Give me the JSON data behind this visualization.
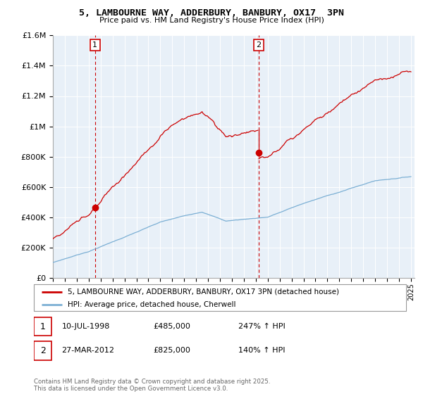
{
  "title": "5, LAMBOURNE WAY, ADDERBURY, BANBURY, OX17  3PN",
  "subtitle": "Price paid vs. HM Land Registry's House Price Index (HPI)",
  "legend_line1": "5, LAMBOURNE WAY, ADDERBURY, BANBURY, OX17 3PN (detached house)",
  "legend_line2": "HPI: Average price, detached house, Cherwell",
  "annotation1_date": "10-JUL-1998",
  "annotation1_price": "£485,000",
  "annotation1_hpi": "247% ↑ HPI",
  "annotation2_date": "27-MAR-2012",
  "annotation2_price": "£825,000",
  "annotation2_hpi": "140% ↑ HPI",
  "footer": "Contains HM Land Registry data © Crown copyright and database right 2025.\nThis data is licensed under the Open Government Licence v3.0.",
  "price_color": "#cc0000",
  "hpi_color": "#7bafd4",
  "vline_color": "#cc0000",
  "bg_color": "#e8f0f8",
  "ylim": [
    0,
    1600000
  ],
  "yticks": [
    0,
    200000,
    400000,
    600000,
    800000,
    1000000,
    1200000,
    1400000,
    1600000
  ],
  "sale1_year": 1998.53,
  "sale2_year": 2012.23,
  "sale1_price": 485000,
  "sale2_price": 825000
}
